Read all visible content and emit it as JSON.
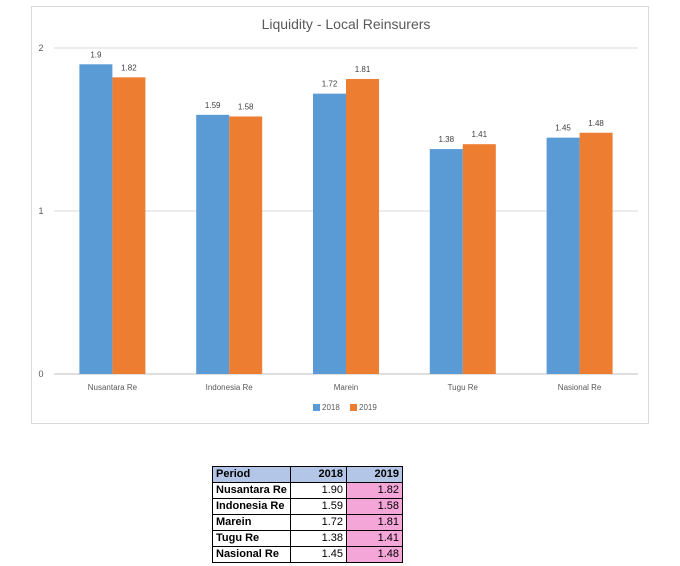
{
  "chart_data": {
    "type": "bar",
    "title": "Liquidity - Local Reinsurers",
    "categories": [
      "Nusantara  Re",
      "Indonesia Re",
      "Marein",
      "Tugu Re",
      "Nasional Re"
    ],
    "series": [
      {
        "name": "2018",
        "values": [
          1.9,
          1.59,
          1.72,
          1.38,
          1.45
        ],
        "labels": [
          "1.9",
          "1.59",
          "1.72",
          "1.38",
          "1.45"
        ],
        "color": "#5b9bd5"
      },
      {
        "name": "2019",
        "values": [
          1.82,
          1.58,
          1.81,
          1.41,
          1.48
        ],
        "labels": [
          "1.82",
          "1.58",
          "1.81",
          "1.41",
          "1.48"
        ],
        "color": "#ed7d31"
      }
    ],
    "ylim": [
      0,
      2
    ],
    "yticks": [
      "0",
      "1",
      "2"
    ],
    "grid": true,
    "legend_position": "bottom"
  },
  "table": {
    "header": {
      "period": "Period",
      "y2018": "2018",
      "y2019": "2019"
    },
    "rows": [
      {
        "name": "Nusantara  Re",
        "v2018": "1.90",
        "v2019": "1.82"
      },
      {
        "name": "Indonesia Re",
        "v2018": "1.59",
        "v2019": "1.58"
      },
      {
        "name": "Marein",
        "v2018": "1.72",
        "v2019": "1.81"
      },
      {
        "name": "Tugu Re",
        "v2018": "1.38",
        "v2019": "1.41"
      },
      {
        "name": "Nasional Re",
        "v2018": "1.45",
        "v2019": "1.48"
      }
    ]
  }
}
